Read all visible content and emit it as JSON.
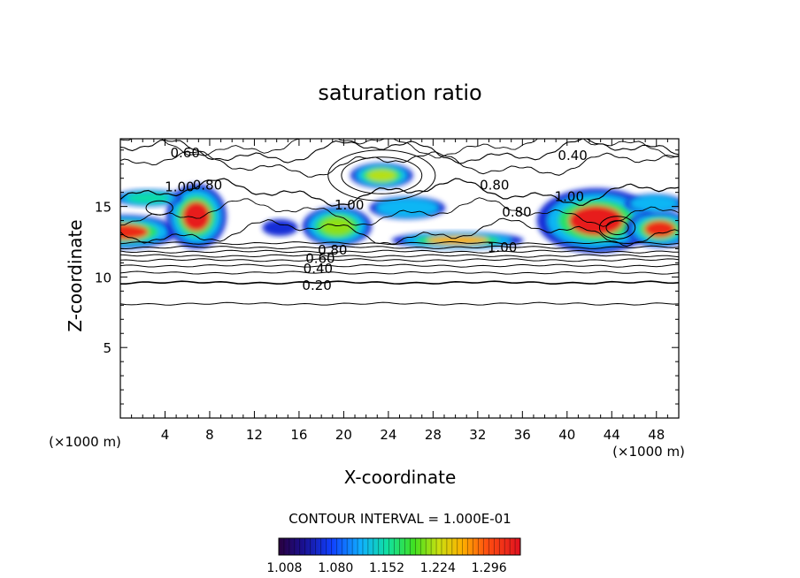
{
  "chart_data": {
    "type": "heatmap",
    "title": "saturation ratio",
    "xlabel": "X-coordinate",
    "ylabel": "Z-coordinate",
    "x_unit": "(×1000 m)",
    "y_unit": "(×1000 m)",
    "xlim": [
      0,
      50
    ],
    "ylim": [
      0,
      19.8
    ],
    "x_ticks": [
      4,
      8,
      12,
      16,
      20,
      24,
      28,
      32,
      36,
      40,
      44,
      48
    ],
    "y_ticks": [
      5,
      10,
      15
    ],
    "contour_interval_text": "CONTOUR INTERVAL = 1.000E-01",
    "colorbar": {
      "min": 1.0,
      "max": 1.34,
      "tick_values": [
        1.008,
        1.08,
        1.152,
        1.224,
        1.296
      ],
      "tick_labels": [
        "1.008",
        "1.080",
        "1.152",
        "1.224",
        "1.296"
      ]
    },
    "contour_labels": [
      {
        "text": "0.20",
        "x": 17.6,
        "z": 9.4
      },
      {
        "text": "0.40",
        "x": 17.7,
        "z": 10.6
      },
      {
        "text": "0.60",
        "x": 17.9,
        "z": 11.3
      },
      {
        "text": "0.80",
        "x": 19.0,
        "z": 11.9
      },
      {
        "text": "1.00",
        "x": 34.2,
        "z": 12.1
      },
      {
        "text": "0.60",
        "x": 5.8,
        "z": 18.8
      },
      {
        "text": "0.40",
        "x": 40.5,
        "z": 18.6
      },
      {
        "text": "0.80",
        "x": 33.5,
        "z": 16.5
      },
      {
        "text": "1.00",
        "x": 5.3,
        "z": 16.4
      },
      {
        "text": "0.80",
        "x": 7.8,
        "z": 16.5
      },
      {
        "text": "1.00",
        "x": 20.5,
        "z": 15.1
      },
      {
        "text": "0.80",
        "x": 35.5,
        "z": 14.6
      },
      {
        "text": "1.00",
        "x": 40.2,
        "z": 15.7
      }
    ],
    "supersaturated_regions": [
      {
        "x": 0.3,
        "z": 13.2,
        "rx": 4.8,
        "rz": 1.2,
        "v": 1.32
      },
      {
        "x": 6.8,
        "z": 14.3,
        "rx": 2.7,
        "rz": 2.3,
        "v": 1.33
      },
      {
        "x": 2.5,
        "z": 15.6,
        "rx": 3.0,
        "rz": 0.6,
        "v": 1.15
      },
      {
        "x": 19.4,
        "z": 13.6,
        "rx": 3.1,
        "rz": 1.4,
        "v": 1.21
      },
      {
        "x": 25.7,
        "z": 14.9,
        "rx": 3.4,
        "rz": 0.8,
        "v": 1.12
      },
      {
        "x": 23.4,
        "z": 17.2,
        "rx": 2.8,
        "rz": 0.9,
        "v": 1.22
      },
      {
        "x": 30.2,
        "z": 12.6,
        "rx": 5.9,
        "rz": 0.6,
        "v": 1.26
      },
      {
        "x": 42.6,
        "z": 14.0,
        "rx": 5.3,
        "rz": 2.3,
        "v": 1.33
      },
      {
        "x": 48.3,
        "z": 13.4,
        "rx": 3.0,
        "rz": 1.3,
        "v": 1.32
      },
      {
        "x": 47.8,
        "z": 15.2,
        "rx": 2.6,
        "rz": 0.7,
        "v": 1.12
      },
      {
        "x": 14.3,
        "z": 13.5,
        "rx": 1.6,
        "rz": 0.6,
        "v": 1.06
      }
    ],
    "contour_levels_z": [
      {
        "level": 0.1,
        "z": 8.1
      },
      {
        "level": 0.2,
        "z": 9.6
      },
      {
        "level": 0.3,
        "z": 10.3
      },
      {
        "level": 0.4,
        "z": 10.8
      },
      {
        "level": 0.5,
        "z": 11.2
      },
      {
        "level": 0.6,
        "z": 11.5
      },
      {
        "level": 0.7,
        "z": 11.8
      },
      {
        "level": 0.8,
        "z": 12.1
      },
      {
        "level": 0.9,
        "z": 12.4
      }
    ]
  }
}
